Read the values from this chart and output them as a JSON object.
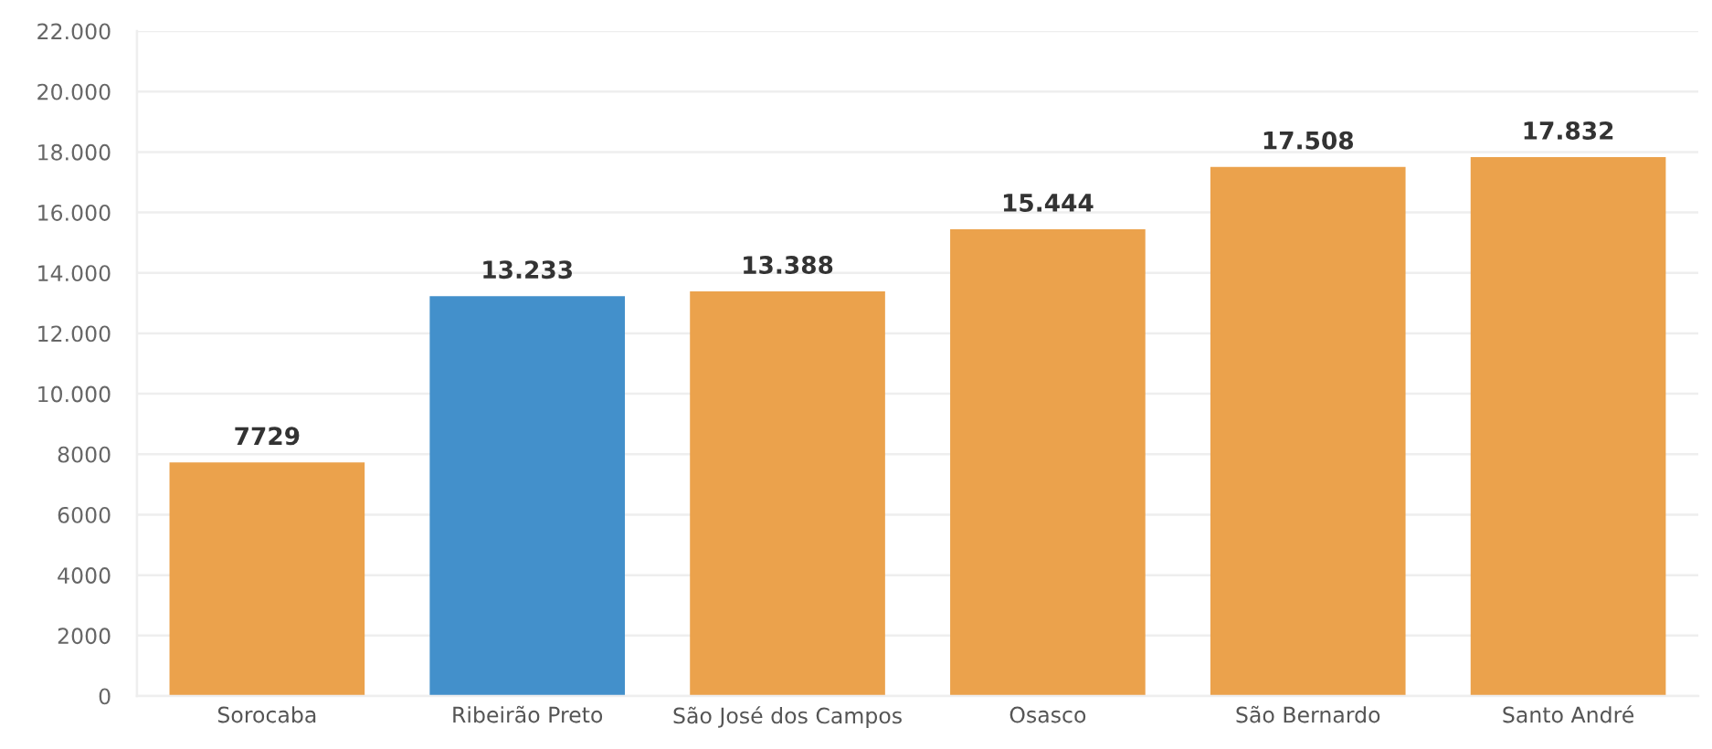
{
  "chart_data": {
    "type": "bar",
    "categories": [
      "Sorocaba",
      "Ribeirão Preto",
      "São José dos Campos",
      "Osasco",
      "São Bernardo",
      "Santo André"
    ],
    "values": [
      7729,
      13233,
      13388,
      15444,
      17508,
      17832
    ],
    "colors": [
      "#eba24c",
      "#4390cb",
      "#eba24c",
      "#eba24c",
      "#eba24c",
      "#eba24c"
    ],
    "value_labels": [
      "7729",
      "13.233",
      "13.388",
      "15.444",
      "17.508",
      "17.832"
    ],
    "ylim": [
      0,
      22000
    ],
    "yticks": [
      0,
      2000,
      4000,
      6000,
      8000,
      {
        "value": 10000,
        "label": "10.000"
      },
      {
        "value": 12000,
        "label": "12.000"
      },
      {
        "value": 14000,
        "label": "14.000"
      },
      {
        "value": 16000,
        "label": "16.000"
      },
      {
        "value": 18000,
        "label": "18.000"
      },
      {
        "value": 20000,
        "label": "20.000"
      },
      {
        "value": 22000,
        "label": "22.000"
      }
    ],
    "grid": "y"
  }
}
